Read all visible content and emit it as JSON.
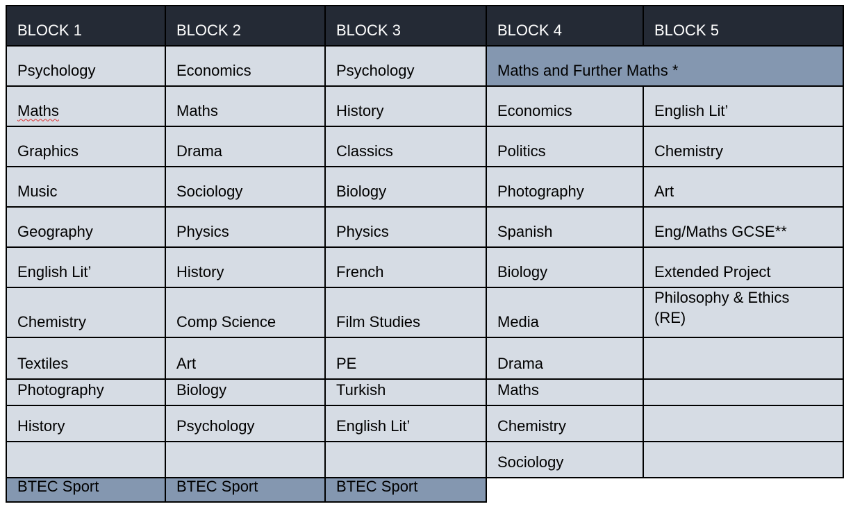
{
  "colors": {
    "header_bg": "#242a35",
    "cell_bg": "#d6dce4",
    "highlight_bg": "#8497b0",
    "border": "#000000"
  },
  "headers": [
    "BLOCK 1",
    "BLOCK 2",
    "BLOCK 3",
    "BLOCK 4",
    "BLOCK 5"
  ],
  "rows": [
    [
      {
        "text": "Psychology"
      },
      {
        "text": "Economics"
      },
      {
        "text": "Psychology"
      },
      {
        "text": "Maths and Further Maths *",
        "span": 2,
        "highlight": true
      }
    ],
    [
      {
        "text": "Maths",
        "spellcheck": true
      },
      {
        "text": "Maths"
      },
      {
        "text": "History"
      },
      {
        "text": "Economics"
      },
      {
        "text": "English Lit’"
      }
    ],
    [
      {
        "text": "Graphics"
      },
      {
        "text": "Drama"
      },
      {
        "text": "Classics"
      },
      {
        "text": "Politics"
      },
      {
        "text": "Chemistry"
      }
    ],
    [
      {
        "text": "Music"
      },
      {
        "text": "Sociology"
      },
      {
        "text": "Biology"
      },
      {
        "text": "Photography"
      },
      {
        "text": "Art"
      }
    ],
    [
      {
        "text": "Geography"
      },
      {
        "text": "Physics"
      },
      {
        "text": "Physics"
      },
      {
        "text": "Spanish"
      },
      {
        "text": "Eng/Maths  GCSE**"
      }
    ],
    [
      {
        "text": "English Lit’"
      },
      {
        "text": "History"
      },
      {
        "text": "French"
      },
      {
        "text": "Biology"
      },
      {
        "text": "Extended Project"
      }
    ],
    [
      {
        "text": "Chemistry"
      },
      {
        "text": "Comp Science"
      },
      {
        "text": "Film Studies"
      },
      {
        "text": "Media"
      },
      {
        "text": "Philosophy & Ethics (RE)"
      }
    ],
    [
      {
        "text": "Textiles"
      },
      {
        "text": "Art"
      },
      {
        "text": "PE"
      },
      {
        "text": "Drama"
      },
      {
        "text": ""
      }
    ],
    [
      {
        "text": "Photography"
      },
      {
        "text": "Biology"
      },
      {
        "text": "Turkish"
      },
      {
        "text": "Maths"
      },
      {
        "text": ""
      }
    ],
    [
      {
        "text": "History"
      },
      {
        "text": "Psychology"
      },
      {
        "text": "English Lit’"
      },
      {
        "text": "Chemistry"
      },
      {
        "text": ""
      }
    ],
    [
      {
        "text": ""
      },
      {
        "text": ""
      },
      {
        "text": ""
      },
      {
        "text": "Sociology"
      },
      {
        "text": ""
      }
    ],
    [
      {
        "text": "BTEC Sport",
        "highlight": true
      },
      {
        "text": "BTEC Sport",
        "highlight": true
      },
      {
        "text": "BTEC Sport",
        "highlight": true
      }
    ]
  ]
}
